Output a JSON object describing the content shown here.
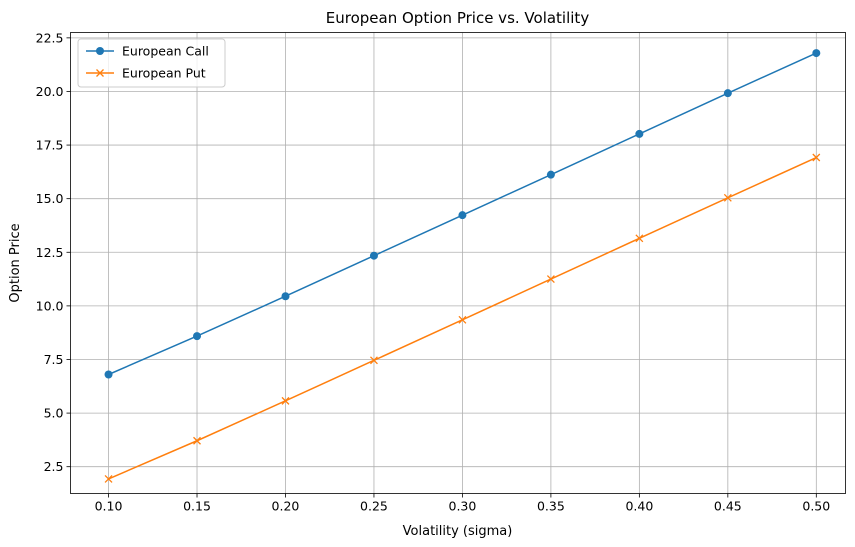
{
  "chart_data": {
    "type": "line",
    "title": "European Option Price vs. Volatility",
    "xlabel": "Volatility (sigma)",
    "ylabel": "Option Price",
    "x": [
      0.1,
      0.15,
      0.2,
      0.25,
      0.3,
      0.35,
      0.4,
      0.45,
      0.5
    ],
    "xticks": [
      "0.10",
      "0.15",
      "0.20",
      "0.25",
      "0.30",
      "0.35",
      "0.40",
      "0.45",
      "0.50"
    ],
    "yticks": [
      "2.5",
      "5.0",
      "7.5",
      "10.0",
      "12.5",
      "15.0",
      "17.5",
      "20.0",
      "22.5"
    ],
    "ytick_values": [
      2.5,
      5.0,
      7.5,
      10.0,
      12.5,
      15.0,
      17.5,
      20.0,
      22.5
    ],
    "xlim": [
      0.0785,
      0.5165
    ],
    "ylim": [
      1.25,
      22.75
    ],
    "grid": true,
    "legend_position": "top-left",
    "series": [
      {
        "name": "European Call",
        "color": "#1f77b4",
        "marker": "circle",
        "values": [
          6.8,
          8.59,
          10.45,
          12.34,
          14.23,
          16.12,
          18.02,
          19.92,
          21.79
        ]
      },
      {
        "name": "European Put",
        "color": "#ff7f0e",
        "marker": "x",
        "values": [
          1.93,
          3.71,
          5.57,
          7.46,
          9.35,
          11.25,
          13.15,
          15.04,
          16.92
        ]
      }
    ]
  }
}
